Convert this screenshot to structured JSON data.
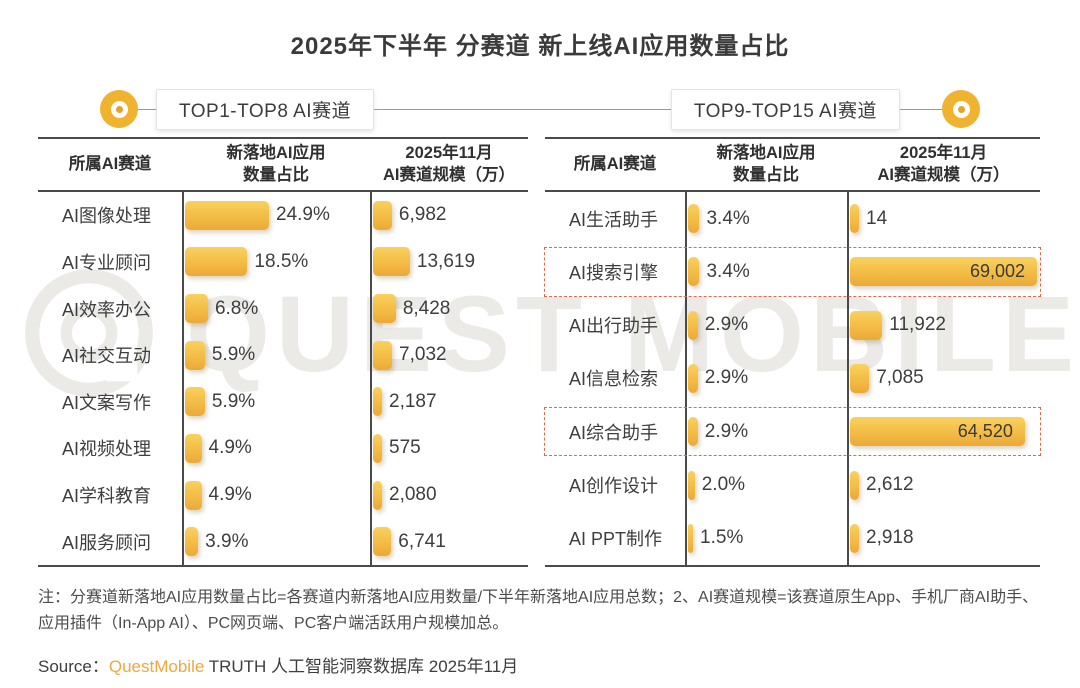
{
  "title": "2025年下半年 分赛道 新上线AI应用数量占比",
  "watermark": "QUEST MOBILE",
  "colors": {
    "bar_top": "#f8d15e",
    "bar_bottom": "#eca937",
    "highlight_dashed_border": "#e0694e",
    "accent_circle": "#f0b32f",
    "brand_orange": "#f0a73e",
    "table_border": "#4a4a4a",
    "text": "#3c3c3c"
  },
  "sections": [
    {
      "badge": "TOP1-TOP8 AI赛道",
      "header": {
        "track": "所属AI赛道",
        "share_line1": "新落地AI应用",
        "share_line2": "数量占比",
        "scale_line1": "2025年11月",
        "scale_line2": "AI赛道规模（万）"
      },
      "rows": [
        {
          "name": "AI图像处理",
          "share_pct": 24.9,
          "share_label": "24.9%",
          "scale_value": 6982,
          "scale_label": "6,982",
          "highlight": false
        },
        {
          "name": "AI专业顾问",
          "share_pct": 18.5,
          "share_label": "18.5%",
          "scale_value": 13619,
          "scale_label": "13,619",
          "highlight": false
        },
        {
          "name": "AI效率办公",
          "share_pct": 6.8,
          "share_label": "6.8%",
          "scale_value": 8428,
          "scale_label": "8,428",
          "highlight": false
        },
        {
          "name": "AI社交互动",
          "share_pct": 5.9,
          "share_label": "5.9%",
          "scale_value": 7032,
          "scale_label": "7,032",
          "highlight": false
        },
        {
          "name": "AI文案写作",
          "share_pct": 5.9,
          "share_label": "5.9%",
          "scale_value": 2187,
          "scale_label": "2,187",
          "highlight": false
        },
        {
          "name": "AI视频处理",
          "share_pct": 4.9,
          "share_label": "4.9%",
          "scale_value": 575,
          "scale_label": "575",
          "highlight": false
        },
        {
          "name": "AI学科教育",
          "share_pct": 4.9,
          "share_label": "4.9%",
          "scale_value": 2080,
          "scale_label": "2,080",
          "highlight": false
        },
        {
          "name": "AI服务顾问",
          "share_pct": 3.9,
          "share_label": "3.9%",
          "scale_value": 6741,
          "scale_label": "6,741",
          "highlight": false
        }
      ]
    },
    {
      "badge": "TOP9-TOP15 AI赛道",
      "header": {
        "track": "所属AI赛道",
        "share_line1": "新落地AI应用",
        "share_line2": "数量占比",
        "scale_line1": "2025年11月",
        "scale_line2": "AI赛道规模（万）"
      },
      "rows": [
        {
          "name": "AI生活助手",
          "share_pct": 3.4,
          "share_label": "3.4%",
          "scale_value": 14,
          "scale_label": "14",
          "highlight": false
        },
        {
          "name": "AI搜索引擎",
          "share_pct": 3.4,
          "share_label": "3.4%",
          "scale_value": 69002,
          "scale_label": "69,002",
          "highlight": true
        },
        {
          "name": "AI出行助手",
          "share_pct": 2.9,
          "share_label": "2.9%",
          "scale_value": 11922,
          "scale_label": "11,922",
          "highlight": false
        },
        {
          "name": "AI信息检索",
          "share_pct": 2.9,
          "share_label": "2.9%",
          "scale_value": 7085,
          "scale_label": "7,085",
          "highlight": false
        },
        {
          "name": "AI综合助手",
          "share_pct": 2.9,
          "share_label": "2.9%",
          "scale_value": 64520,
          "scale_label": "64,520",
          "highlight": true
        },
        {
          "name": "AI创作设计",
          "share_pct": 2.0,
          "share_label": "2.0%",
          "scale_value": 2612,
          "scale_label": "2,612",
          "highlight": false
        },
        {
          "name": "AI PPT制作",
          "share_pct": 1.5,
          "share_label": "1.5%",
          "scale_value": 2918,
          "scale_label": "2,918",
          "highlight": false
        }
      ]
    }
  ],
  "note": "注：分赛道新落地AI应用数量占比=各赛道内新落地AI应用数量/下半年新落地AI应用总数；2、AI赛道规模=该赛道原生App、手机厂商AI助手、应用插件（In-App AI）、PC网页端、PC客户端活跃用户规模加总。",
  "source": {
    "prefix": "Source：",
    "brand": "QuestMobile",
    "rest": " TRUTH 人工智能洞察数据库 2025年11月"
  },
  "chart_data": [
    {
      "type": "bar",
      "title": "TOP1-TOP8 AI赛道",
      "categories": [
        "AI图像处理",
        "AI专业顾问",
        "AI效率办公",
        "AI社交互动",
        "AI文案写作",
        "AI视频处理",
        "AI学科教育",
        "AI服务顾问"
      ],
      "series": [
        {
          "name": "新落地AI应用数量占比(%)",
          "values": [
            24.9,
            18.5,
            6.8,
            5.9,
            5.9,
            4.9,
            4.9,
            3.9
          ]
        },
        {
          "name": "2025年11月AI赛道规模(万)",
          "values": [
            6982,
            13619,
            8428,
            7032,
            2187,
            575,
            2080,
            6741
          ]
        }
      ],
      "orientation": "horizontal",
      "grid": false,
      "legend_position": "none"
    },
    {
      "type": "bar",
      "title": "TOP9-TOP15 AI赛道",
      "categories": [
        "AI生活助手",
        "AI搜索引擎",
        "AI出行助手",
        "AI信息检索",
        "AI综合助手",
        "AI创作设计",
        "AI PPT制作"
      ],
      "series": [
        {
          "name": "新落地AI应用数量占比(%)",
          "values": [
            3.4,
            3.4,
            2.9,
            2.9,
            2.9,
            2.0,
            1.5
          ]
        },
        {
          "name": "2025年11月AI赛道规模(万)",
          "values": [
            14,
            69002,
            11922,
            7085,
            64520,
            2612,
            2918
          ]
        }
      ],
      "highlighted_categories": [
        "AI搜索引擎",
        "AI综合助手"
      ],
      "orientation": "horizontal",
      "grid": false,
      "legend_position": "none"
    }
  ]
}
